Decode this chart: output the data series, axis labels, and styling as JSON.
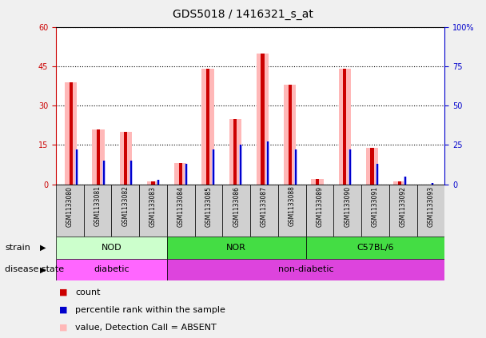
{
  "title": "GDS5018 / 1416321_s_at",
  "samples": [
    "GSM1133080",
    "GSM1133081",
    "GSM1133082",
    "GSM1133083",
    "GSM1133084",
    "GSM1133085",
    "GSM1133086",
    "GSM1133087",
    "GSM1133088",
    "GSM1133089",
    "GSM1133090",
    "GSM1133091",
    "GSM1133092",
    "GSM1133093"
  ],
  "count_values": [
    39,
    21,
    20,
    1,
    8,
    44,
    25,
    50,
    38,
    2,
    44,
    14,
    1,
    0
  ],
  "percentile_values": [
    22,
    15,
    15,
    3,
    13,
    22,
    25,
    27,
    22,
    0,
    22,
    13,
    5,
    1
  ],
  "absent_value_values": [
    39,
    21,
    20,
    1,
    8,
    44,
    25,
    50,
    38,
    2,
    44,
    14,
    1,
    0
  ],
  "absent_rank_values": [
    22,
    15,
    15,
    3,
    13,
    22,
    25,
    27,
    22,
    0,
    22,
    13,
    5,
    1
  ],
  "ylim": [
    0,
    60
  ],
  "yticks": [
    0,
    15,
    30,
    45,
    60
  ],
  "y2lim": [
    0,
    100
  ],
  "y2ticks": [
    0,
    25,
    50,
    75,
    100
  ],
  "count_color": "#cc0000",
  "percentile_color": "#0000cc",
  "absent_value_color": "#ffb8b8",
  "absent_rank_color": "#b8b8ff",
  "strains": [
    {
      "label": "NOD",
      "start": 0,
      "end": 4,
      "color": "#ccffcc"
    },
    {
      "label": "NOR",
      "start": 4,
      "end": 9,
      "color": "#44dd44"
    },
    {
      "label": "C57BL/6",
      "start": 9,
      "end": 14,
      "color": "#44dd44"
    }
  ],
  "disease_states": [
    {
      "label": "diabetic",
      "start": 0,
      "end": 4,
      "color": "#ff66ff"
    },
    {
      "label": "non-diabetic",
      "start": 4,
      "end": 14,
      "color": "#dd44dd"
    }
  ],
  "strain_label": "strain",
  "disease_label": "disease state",
  "bg_color": "#f0f0f0",
  "plot_bg": "#ffffff",
  "grid_color": "#000000",
  "axis_color_left": "#cc0000",
  "axis_color_right": "#0000cc",
  "title_fontsize": 10,
  "tick_fontsize": 7,
  "legend_fontsize": 8,
  "sample_bg": "#d0d0d0"
}
